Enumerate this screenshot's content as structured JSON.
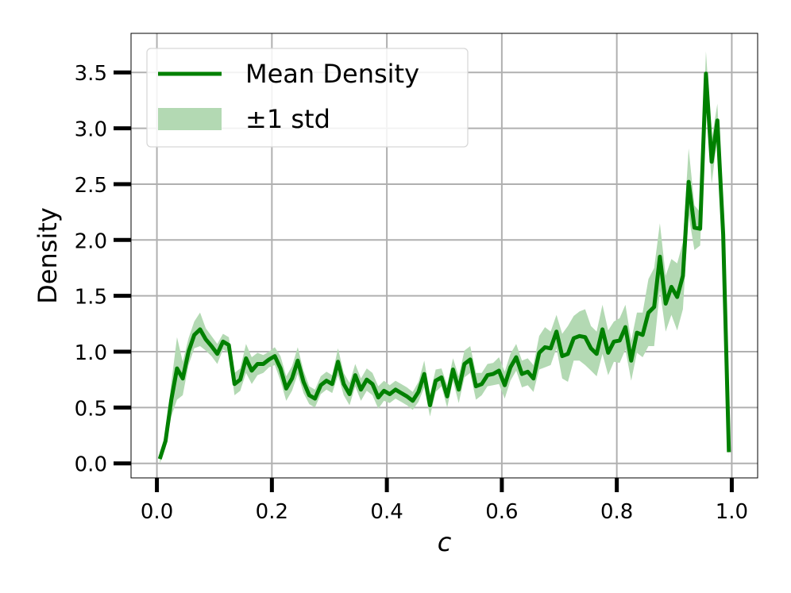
{
  "chart_data": {
    "type": "line",
    "xlabel": "c",
    "ylabel": "Density",
    "xlim": [
      -0.045,
      1.045
    ],
    "ylim": [
      -0.13,
      3.85
    ],
    "xticks": [
      0.0,
      0.2,
      0.4,
      0.6,
      0.8,
      1.0
    ],
    "xtick_labels": [
      "0.0",
      "0.2",
      "0.4",
      "0.6",
      "0.8",
      "1.0"
    ],
    "yticks": [
      0.0,
      0.5,
      1.0,
      1.5,
      2.0,
      2.5,
      3.0,
      3.5
    ],
    "ytick_labels": [
      "0.0",
      "0.5",
      "1.0",
      "1.5",
      "2.0",
      "2.5",
      "3.0",
      "3.5"
    ],
    "grid": true,
    "legend_position": "top-left",
    "colors": {
      "line": "#008000",
      "band": "#b3d9b3",
      "grid": "#b0b0b0"
    },
    "series": [
      {
        "name": "Mean Density",
        "kind": "line"
      },
      {
        "name": "±1 std",
        "kind": "band"
      }
    ],
    "x": [
      0.005,
      0.015,
      0.025,
      0.035,
      0.045,
      0.055,
      0.065,
      0.075,
      0.085,
      0.095,
      0.105,
      0.115,
      0.125,
      0.135,
      0.145,
      0.155,
      0.165,
      0.175,
      0.185,
      0.195,
      0.205,
      0.215,
      0.225,
      0.235,
      0.245,
      0.255,
      0.265,
      0.275,
      0.285,
      0.295,
      0.305,
      0.315,
      0.325,
      0.335,
      0.345,
      0.355,
      0.365,
      0.375,
      0.385,
      0.395,
      0.405,
      0.415,
      0.425,
      0.435,
      0.445,
      0.455,
      0.465,
      0.475,
      0.485,
      0.495,
      0.505,
      0.515,
      0.525,
      0.535,
      0.545,
      0.555,
      0.565,
      0.575,
      0.585,
      0.595,
      0.605,
      0.615,
      0.625,
      0.635,
      0.645,
      0.655,
      0.665,
      0.675,
      0.685,
      0.695,
      0.705,
      0.715,
      0.725,
      0.735,
      0.745,
      0.755,
      0.765,
      0.775,
      0.785,
      0.795,
      0.805,
      0.815,
      0.825,
      0.835,
      0.845,
      0.855,
      0.865,
      0.875,
      0.885,
      0.895,
      0.905,
      0.915,
      0.925,
      0.935,
      0.945,
      0.955,
      0.965,
      0.975,
      0.985,
      0.995
    ],
    "mean": [
      0.04,
      0.2,
      0.57,
      0.85,
      0.76,
      1.0,
      1.15,
      1.2,
      1.11,
      1.05,
      0.98,
      1.09,
      1.06,
      0.71,
      0.75,
      0.94,
      0.83,
      0.89,
      0.89,
      0.93,
      0.96,
      0.85,
      0.67,
      0.76,
      0.92,
      0.73,
      0.61,
      0.58,
      0.7,
      0.74,
      0.71,
      0.91,
      0.71,
      0.62,
      0.79,
      0.66,
      0.75,
      0.71,
      0.59,
      0.65,
      0.62,
      0.66,
      0.63,
      0.6,
      0.56,
      0.64,
      0.8,
      0.52,
      0.74,
      0.77,
      0.6,
      0.84,
      0.66,
      0.89,
      0.93,
      0.69,
      0.71,
      0.79,
      0.8,
      0.83,
      0.7,
      0.86,
      0.95,
      0.8,
      0.82,
      0.76,
      0.99,
      1.04,
      1.03,
      1.18,
      0.96,
      0.98,
      1.12,
      1.14,
      1.13,
      1.03,
      0.98,
      1.2,
      0.99,
      1.09,
      1.1,
      1.22,
      0.92,
      1.17,
      1.15,
      1.35,
      1.4,
      1.85,
      1.43,
      1.58,
      1.49,
      1.68,
      2.52,
      2.11,
      2.1,
      3.49,
      2.7,
      3.07,
      2.05,
      0.1
    ],
    "std": [
      0.06,
      0.06,
      0.15,
      0.28,
      0.15,
      0.12,
      0.12,
      0.15,
      0.1,
      0.09,
      0.09,
      0.07,
      0.07,
      0.1,
      0.1,
      0.13,
      0.12,
      0.1,
      0.08,
      0.07,
      0.08,
      0.11,
      0.11,
      0.11,
      0.12,
      0.1,
      0.08,
      0.08,
      0.08,
      0.08,
      0.08,
      0.12,
      0.1,
      0.1,
      0.1,
      0.1,
      0.1,
      0.1,
      0.1,
      0.09,
      0.08,
      0.08,
      0.08,
      0.08,
      0.08,
      0.09,
      0.12,
      0.1,
      0.1,
      0.08,
      0.1,
      0.1,
      0.12,
      0.12,
      0.12,
      0.12,
      0.1,
      0.1,
      0.1,
      0.12,
      0.12,
      0.12,
      0.12,
      0.12,
      0.12,
      0.12,
      0.15,
      0.18,
      0.15,
      0.15,
      0.2,
      0.25,
      0.2,
      0.22,
      0.25,
      0.2,
      0.2,
      0.22,
      0.2,
      0.18,
      0.2,
      0.2,
      0.18,
      0.18,
      0.2,
      0.3,
      0.35,
      0.3,
      0.25,
      0.25,
      0.3,
      0.3,
      0.3,
      0.2,
      0.15,
      0.2,
      0.2,
      0.15,
      0.12,
      0.05
    ]
  }
}
